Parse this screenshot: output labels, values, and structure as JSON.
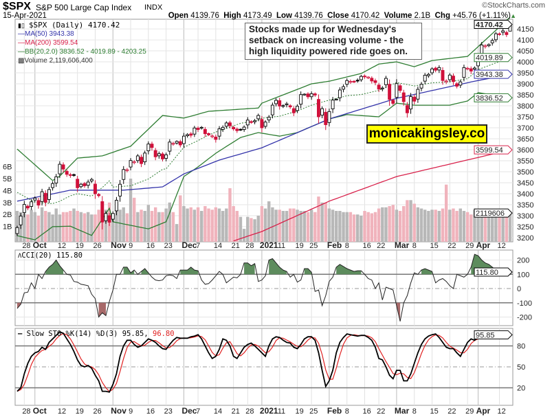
{
  "header": {
    "symbol": "$SPX",
    "name": "S&P 500 Large Cap Index",
    "exchange": "INDX",
    "date": "15-Apr-2021",
    "brand": "©StockCharts.com",
    "open_label": "Open",
    "open": "4139.76",
    "high_label": "High",
    "high": "4173.49",
    "low_label": "Low",
    "low": "4139.76",
    "close_label": "Close",
    "close": "4170.42",
    "volume_label": "Volume",
    "volume": "2.1B",
    "chg_label": "Chg",
    "chg": "+45.76 (+1.11%)",
    "chg_icon": "up-triangle-icon"
  },
  "legend": {
    "price": "$SPX (Daily) 4170.42",
    "ma50": "MA(50) 3943.38",
    "ma200": "MA(200) 3599.54",
    "bb": "BB(20,2.0) 3836.52 - 4019.89 - 4203.25",
    "volume": "Volume 2,119,606,400"
  },
  "annotations": {
    "note": "Stocks made up for Wednesday's setback on increasing volume - the high liquidity powered ride goes on.",
    "site": "monicakingsley.co"
  },
  "colors": {
    "up": "#000000",
    "down": "#d0103a",
    "ma50": "#3333aa",
    "ma200": "#d8204a",
    "bb": "#2e7d32",
    "vol_up": "#b8b8b8",
    "vol_down": "#f0b3bc",
    "cci_pos": "#5d8c5d",
    "cci_neg": "#a86a6a",
    "k": "#000000",
    "d": "#e02020"
  },
  "chart_data": [
    {
      "type": "candlestick",
      "panel": "price",
      "trading_days": {
        "2020-09": [
          24,
          25,
          28,
          29,
          30
        ],
        "2020-10": [
          1,
          2,
          5,
          6,
          7,
          8,
          9,
          12,
          13,
          14,
          15,
          16,
          19,
          20,
          21,
          22,
          23,
          26,
          27,
          28,
          29,
          30
        ],
        "2020-11": [
          2,
          3,
          4,
          5,
          6,
          9,
          10,
          11,
          12,
          13,
          16,
          17,
          18,
          19,
          20,
          23,
          24,
          25,
          27,
          30
        ],
        "2020-12": [
          1,
          2,
          3,
          4,
          7,
          8,
          9,
          10,
          11,
          14,
          15,
          16,
          17,
          18,
          21,
          22,
          23,
          24,
          28,
          29,
          30,
          31
        ],
        "2021-01": [
          4,
          5,
          6,
          7,
          8,
          11,
          12,
          13,
          14,
          15,
          19,
          20,
          21,
          22,
          25,
          26,
          27,
          28,
          29
        ],
        "2021-02": [
          1,
          2,
          3,
          4,
          5,
          8,
          9,
          10,
          11,
          12,
          16,
          17,
          18,
          19,
          22,
          23,
          24,
          25,
          26
        ],
        "2021-03": [
          1,
          2,
          3,
          4,
          5,
          8,
          9,
          10,
          11,
          12,
          15,
          16,
          17,
          18,
          19,
          22,
          23,
          24,
          25,
          26,
          29,
          30,
          31
        ],
        "2021-04": [
          1,
          5,
          6,
          7,
          8,
          9,
          12,
          13,
          14,
          15
        ]
      },
      "close": [
        3246,
        3298,
        3351,
        3335,
        3363,
        3380,
        3348,
        3409,
        3361,
        3419,
        3446,
        3477,
        3534,
        3512,
        3488,
        3483,
        3483,
        3427,
        3443,
        3436,
        3453,
        3465,
        3400,
        3391,
        3271,
        3310,
        3270,
        3310,
        3370,
        3443,
        3510,
        3509,
        3551,
        3545,
        3572,
        3537,
        3585,
        3626,
        3610,
        3568,
        3582,
        3558,
        3577,
        3635,
        3629,
        3638,
        3622,
        3662,
        3669,
        3666,
        3699,
        3692,
        3702,
        3673,
        3668,
        3663,
        3647,
        3695,
        3702,
        3722,
        3709,
        3695,
        3687,
        3691,
        3703,
        3735,
        3727,
        3732,
        3756,
        3700,
        3726,
        3748,
        3803,
        3825,
        3799,
        3801,
        3809,
        3795,
        3768,
        3798,
        3851,
        3853,
        3841,
        3855,
        3849,
        3750,
        3787,
        3714,
        3774,
        3826,
        3830,
        3872,
        3887,
        3915,
        3911,
        3910,
        3916,
        3934,
        3932,
        3931,
        3913,
        3906,
        3876,
        3881,
        3925,
        3829,
        3811,
        3901,
        3870,
        3819,
        3768,
        3842,
        3821,
        3875,
        3898,
        3939,
        3943,
        3968,
        3962,
        3974,
        3915,
        3913,
        3940,
        3910,
        3889,
        3909,
        3974,
        3971,
        3958,
        3972,
        4019,
        4077,
        4073,
        4079,
        4097,
        4128,
        4127,
        4141,
        4124,
        4170.42
      ],
      "last": {
        "open": 4139.76,
        "high": 4173.49,
        "low": 4139.76,
        "close": 4170.42
      },
      "ma50": [
        [
          "2020-09-24",
          3366
        ],
        [
          "2020-10-15",
          3416
        ],
        [
          "2020-11-05",
          3416
        ],
        [
          "2020-11-20",
          3431
        ],
        [
          "2020-12-01",
          3490
        ],
        [
          "2020-12-15",
          3553
        ],
        [
          "2021-01-04",
          3609
        ],
        [
          "2021-02-01",
          3740
        ],
        [
          "2021-03-01",
          3834
        ],
        [
          "2021-03-31",
          3912
        ],
        [
          "2021-04-15",
          3943.38
        ]
      ],
      "ma200": [
        [
          "2020-12-21",
          3185
        ],
        [
          "2021-01-04",
          3228
        ],
        [
          "2021-02-01",
          3366
        ],
        [
          "2021-03-01",
          3478
        ],
        [
          "2021-04-01",
          3565
        ],
        [
          "2021-04-15",
          3599.54
        ]
      ],
      "bb_upper": [
        [
          "2020-09-24",
          3603
        ],
        [
          "2020-10-08",
          3460
        ],
        [
          "2020-10-12",
          3480
        ],
        [
          "2020-10-19",
          3562
        ],
        [
          "2020-10-28",
          3572
        ],
        [
          "2020-11-09",
          3616
        ],
        [
          "2020-11-20",
          3756
        ],
        [
          "2020-12-01",
          3744
        ],
        [
          "2020-12-10",
          3775
        ],
        [
          "2020-12-31",
          3790
        ],
        [
          "2021-01-04",
          3812
        ],
        [
          "2021-01-25",
          3900
        ],
        [
          "2021-02-01",
          3912
        ],
        [
          "2021-02-12",
          3947
        ],
        [
          "2021-02-22",
          3990
        ],
        [
          "2021-03-01",
          4000
        ],
        [
          "2021-03-08",
          3978
        ],
        [
          "2021-03-15",
          4006
        ],
        [
          "2021-03-29",
          4025
        ],
        [
          "2021-04-15",
          4203.25
        ]
      ],
      "bb_lower": [
        [
          "2020-09-24",
          3209
        ],
        [
          "2020-10-01",
          3190
        ],
        [
          "2020-10-08",
          3250
        ],
        [
          "2020-10-15",
          3252
        ],
        [
          "2020-10-23",
          3210
        ],
        [
          "2020-10-30",
          3334
        ],
        [
          "2020-11-02",
          3272
        ],
        [
          "2020-11-16",
          3240
        ],
        [
          "2020-11-23",
          3272
        ],
        [
          "2020-12-01",
          3478
        ],
        [
          "2020-12-07",
          3522
        ],
        [
          "2020-12-14",
          3584
        ],
        [
          "2020-12-23",
          3656
        ],
        [
          "2020-12-31",
          3678
        ],
        [
          "2021-01-11",
          3662
        ],
        [
          "2021-01-19",
          3678
        ],
        [
          "2021-02-01",
          3740
        ],
        [
          "2021-02-08",
          3760
        ],
        [
          "2021-02-22",
          3750
        ],
        [
          "2021-03-01",
          3812
        ],
        [
          "2021-03-08",
          3803
        ],
        [
          "2021-03-22",
          3803
        ],
        [
          "2021-03-29",
          3822
        ],
        [
          "2021-04-01",
          3860
        ],
        [
          "2021-04-15",
          3836.52
        ]
      ],
      "bb_middle_last": 4019.89,
      "volume_billions": [
        2.3,
        2.2,
        2.1,
        2.0,
        2.4,
        2.2,
        1.9,
        2.6,
        2.3,
        2.2,
        2.0,
        2.5,
        2.0,
        2.2,
        2.2,
        2.3,
        2.5,
        2.3,
        2.2,
        2.1,
        2.2,
        2.0,
        2.0,
        2.4,
        3.1,
        2.4,
        3.0,
        2.1,
        2.8,
        2.4,
        2.6,
        2.1,
        5.0,
        3.4,
        2.2,
        2.4,
        2.3,
        2.8,
        2.3,
        2.6,
        2.2,
        2.2,
        2.5,
        3.0,
        2.2,
        1.2,
        3.6,
        2.7,
        2.5,
        2.6,
        2.4,
        2.6,
        2.3,
        2.7,
        2.5,
        2.4,
        2.6,
        2.5,
        2.3,
        2.5,
        4.2,
        2.7,
        2.3,
        1.8,
        0.8,
        1.8,
        1.7,
        1.6,
        1.9,
        2.7,
        2.5,
        3.1,
        2.6,
        2.4,
        2.4,
        2.3,
        2.3,
        2.5,
        2.5,
        2.4,
        2.3,
        2.3,
        2.2,
        2.4,
        2.2,
        3.5,
        3.0,
        3.0,
        2.5,
        2.4,
        2.3,
        2.3,
        2.2,
        2.2,
        2.2,
        2.0,
        2.0,
        1.9,
        2.3,
        2.2,
        2.1,
        2.2,
        2.5,
        2.6,
        2.6,
        2.7,
        2.8,
        2.4,
        2.3,
        2.7,
        3.2,
        3.2,
        2.9,
        2.6,
        2.5,
        2.4,
        2.3,
        2.4,
        2.4,
        2.3,
        2.5,
        4.5,
        2.4,
        2.5,
        2.3,
        2.5,
        2.3,
        2.2,
        2.0,
        2.4,
        2.3,
        2.3,
        2.1,
        2.0,
        2.1,
        1.9,
        2.0,
        2.1,
        2.1,
        2.12
      ],
      "ylim": [
        3181,
        4194
      ],
      "yticks": [
        3200,
        3250,
        3300,
        3350,
        3400,
        3450,
        3500,
        3550,
        3600,
        3650,
        3700,
        3750,
        3800,
        3850,
        3900,
        3950,
        4000,
        4050,
        4100,
        4150
      ],
      "volume_ticks": [
        "1B",
        "2B",
        "3B",
        "4B",
        "5B",
        "6B"
      ],
      "tags": [
        {
          "label": "4170.42",
          "value": 4170.42,
          "series": "close"
        },
        {
          "label": "4019.89",
          "value": 4019.89,
          "series": "bb"
        },
        {
          "label": "3943.38",
          "value": 3943.38,
          "series": "ma50"
        },
        {
          "label": "3836.52",
          "value": 3836.52,
          "series": "bb"
        },
        {
          "label": "3599.54",
          "value": 3599.54,
          "series": "ma200"
        },
        {
          "label": "2119606",
          "value": 2.12,
          "series": "volume"
        }
      ],
      "grid": true
    },
    {
      "type": "line",
      "panel": "cci",
      "title": "CCI(20) 115.80",
      "values": [
        -140,
        -110,
        -30,
        -25,
        40,
        0,
        100,
        70,
        120,
        150,
        170,
        200,
        160,
        130,
        100,
        95,
        50,
        45,
        30,
        25,
        20,
        -40,
        -70,
        -200,
        -170,
        -190,
        -90,
        -10,
        100,
        100,
        150,
        150,
        110,
        130,
        100,
        120,
        140,
        110,
        80,
        60,
        55,
        60,
        90,
        95,
        90,
        70,
        130,
        130,
        130,
        150,
        130,
        125,
        60,
        30,
        35,
        60,
        90,
        120,
        100,
        40,
        60,
        80,
        75,
        100,
        180,
        180,
        160,
        175,
        50,
        60,
        90,
        200,
        210,
        180,
        150,
        130,
        120,
        80,
        100,
        45,
        60,
        140,
        140,
        115,
        -20,
        -10,
        -120,
        -50,
        50,
        80,
        150,
        170,
        155,
        140,
        130,
        120,
        125,
        125,
        100,
        70,
        60,
        0,
        40,
        -80,
        10,
        0,
        -10,
        -120,
        -230,
        -100,
        -50,
        40,
        110,
        100,
        130,
        140,
        130,
        120,
        40,
        60,
        70,
        50,
        20,
        0,
        100,
        90,
        80,
        100,
        150,
        240,
        230,
        200,
        180,
        170,
        150,
        130,
        110,
        105,
        115.8
      ],
      "ylim": [
        -260,
        270
      ],
      "yticks": [
        200,
        100,
        0,
        -100,
        -200
      ],
      "tag": "115.80",
      "grid": true
    },
    {
      "type": "line",
      "panel": "stochastic",
      "title_k": "Slow STO %K(14) %D(3) 95.85,",
      "title_d": "96.80",
      "k": [
        15,
        20,
        40,
        55,
        65,
        70,
        72,
        78,
        75,
        85,
        90,
        95,
        100,
        98,
        90,
        82,
        72,
        60,
        52,
        50,
        52,
        48,
        38,
        30,
        15,
        15,
        14,
        25,
        40,
        65,
        80,
        88,
        88,
        82,
        78,
        80,
        85,
        90,
        88,
        85,
        80,
        76,
        75,
        82,
        88,
        92,
        91,
        91,
        91,
        93,
        94,
        96,
        90,
        80,
        70,
        62,
        65,
        75,
        90,
        88,
        80,
        65,
        62,
        70,
        78,
        82,
        84,
        80,
        75,
        70,
        65,
        80,
        90,
        93,
        92,
        88,
        85,
        84,
        78,
        76,
        82,
        90,
        93,
        93,
        88,
        70,
        45,
        22,
        30,
        45,
        70,
        85,
        92,
        97,
        96,
        95,
        94,
        95,
        95,
        92,
        88,
        78,
        62,
        60,
        50,
        38,
        33,
        45,
        45,
        30,
        30,
        40,
        55,
        70,
        82,
        90,
        94,
        96,
        97,
        92,
        85,
        78,
        76,
        76,
        70,
        65,
        75,
        85,
        90,
        88,
        92,
        96,
        96,
        96,
        97,
        97,
        98,
        97,
        96,
        95.85
      ],
      "ylim": [
        -5,
        105
      ],
      "yticks": [
        80,
        50,
        20
      ],
      "tag": "95.85",
      "grid": true
    }
  ],
  "x_ticks": [
    {
      "date": "2020-09-28",
      "label": "28"
    },
    {
      "date": "2020-10-01",
      "label": "Oct",
      "bold": true
    },
    {
      "date": "2020-10-12",
      "label": "12"
    },
    {
      "date": "2020-10-19",
      "label": "19"
    },
    {
      "date": "2020-10-26",
      "label": "26"
    },
    {
      "date": "2020-11-02",
      "label": "Nov",
      "bold": true
    },
    {
      "date": "2020-11-09",
      "label": "9"
    },
    {
      "date": "2020-11-16",
      "label": "16"
    },
    {
      "date": "2020-11-23",
      "label": "23"
    },
    {
      "date": "2020-12-01",
      "label": "Dec",
      "bold": true
    },
    {
      "date": "2020-12-07",
      "label": "7"
    },
    {
      "date": "2020-12-14",
      "label": "14"
    },
    {
      "date": "2020-12-21",
      "label": "21"
    },
    {
      "date": "2020-12-28",
      "label": "28"
    },
    {
      "date": "2021-01-04",
      "label": "2021",
      "bold": true
    },
    {
      "date": "2021-01-11",
      "label": "11"
    },
    {
      "date": "2021-01-19",
      "label": "19"
    },
    {
      "date": "2021-01-25",
      "label": "25"
    },
    {
      "date": "2021-02-01",
      "label": "Feb",
      "bold": true
    },
    {
      "date": "2021-02-08",
      "label": "8"
    },
    {
      "date": "2021-02-16",
      "label": "16"
    },
    {
      "date": "2021-02-22",
      "label": "22"
    },
    {
      "date": "2021-03-01",
      "label": "Mar",
      "bold": true
    },
    {
      "date": "2021-03-08",
      "label": "8"
    },
    {
      "date": "2021-03-15",
      "label": "15"
    },
    {
      "date": "2021-03-22",
      "label": "22"
    },
    {
      "date": "2021-03-29",
      "label": "29"
    },
    {
      "date": "2021-04-01",
      "label": "Apr",
      "bold": true
    },
    {
      "date": "2021-04-12",
      "label": "12"
    }
  ]
}
